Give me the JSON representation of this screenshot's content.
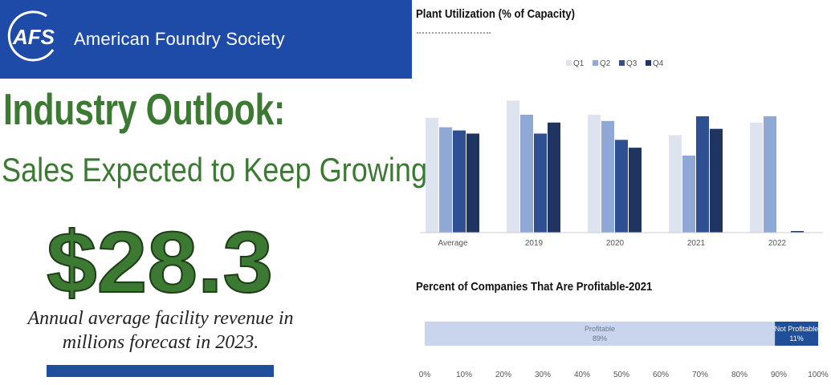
{
  "header": {
    "logo_text": "AFS",
    "org_name": "American Foundry Society"
  },
  "headline": "Industry Outlook:",
  "subheadline": "Sales Expected to Keep Growing",
  "revenue": {
    "value": "$28.3",
    "caption_line1": "Annual average facility revenue in",
    "caption_line2": "millions forecast in 2023."
  },
  "colors": {
    "banner": "#1e4aa8",
    "headline_green": "#3c7a33",
    "q1": "#dde3ef",
    "q2": "#8fa8d6",
    "q3": "#2f4f93",
    "q4": "#1f3461",
    "profitable": "#c9d5ec",
    "not_profitable": "#1f4e9a"
  },
  "chart_data": [
    {
      "type": "bar",
      "title": "Plant Utilization (% of Capacity)",
      "categories": [
        "Average",
        "2019",
        "2020",
        "2021",
        "2022"
      ],
      "series": [
        {
          "name": "Q1",
          "values": [
            73,
            84,
            75,
            62,
            70
          ]
        },
        {
          "name": "Q2",
          "values": [
            67,
            75,
            71,
            49,
            74
          ]
        },
        {
          "name": "Q3",
          "values": [
            65,
            63,
            59,
            74,
            null
          ]
        },
        {
          "name": "Q4",
          "values": [
            63,
            70,
            54,
            66,
            1
          ]
        }
      ],
      "ylim": [
        0,
        100
      ],
      "xlabel": "",
      "ylabel": "",
      "legend": "top-center"
    },
    {
      "type": "bar",
      "orientation": "horizontal-stacked",
      "title": "Percent of Companies That Are Profitable-2021",
      "segments": [
        {
          "name": "Profitable",
          "value": 89,
          "label": "89%"
        },
        {
          "name": "Not Profitable",
          "value": 11,
          "label": "11%"
        }
      ],
      "ticks": [
        "0%",
        "10%",
        "20%",
        "30%",
        "40%",
        "50%",
        "60%",
        "70%",
        "80%",
        "90%",
        "100%"
      ],
      "xlim": [
        0,
        100
      ]
    }
  ]
}
